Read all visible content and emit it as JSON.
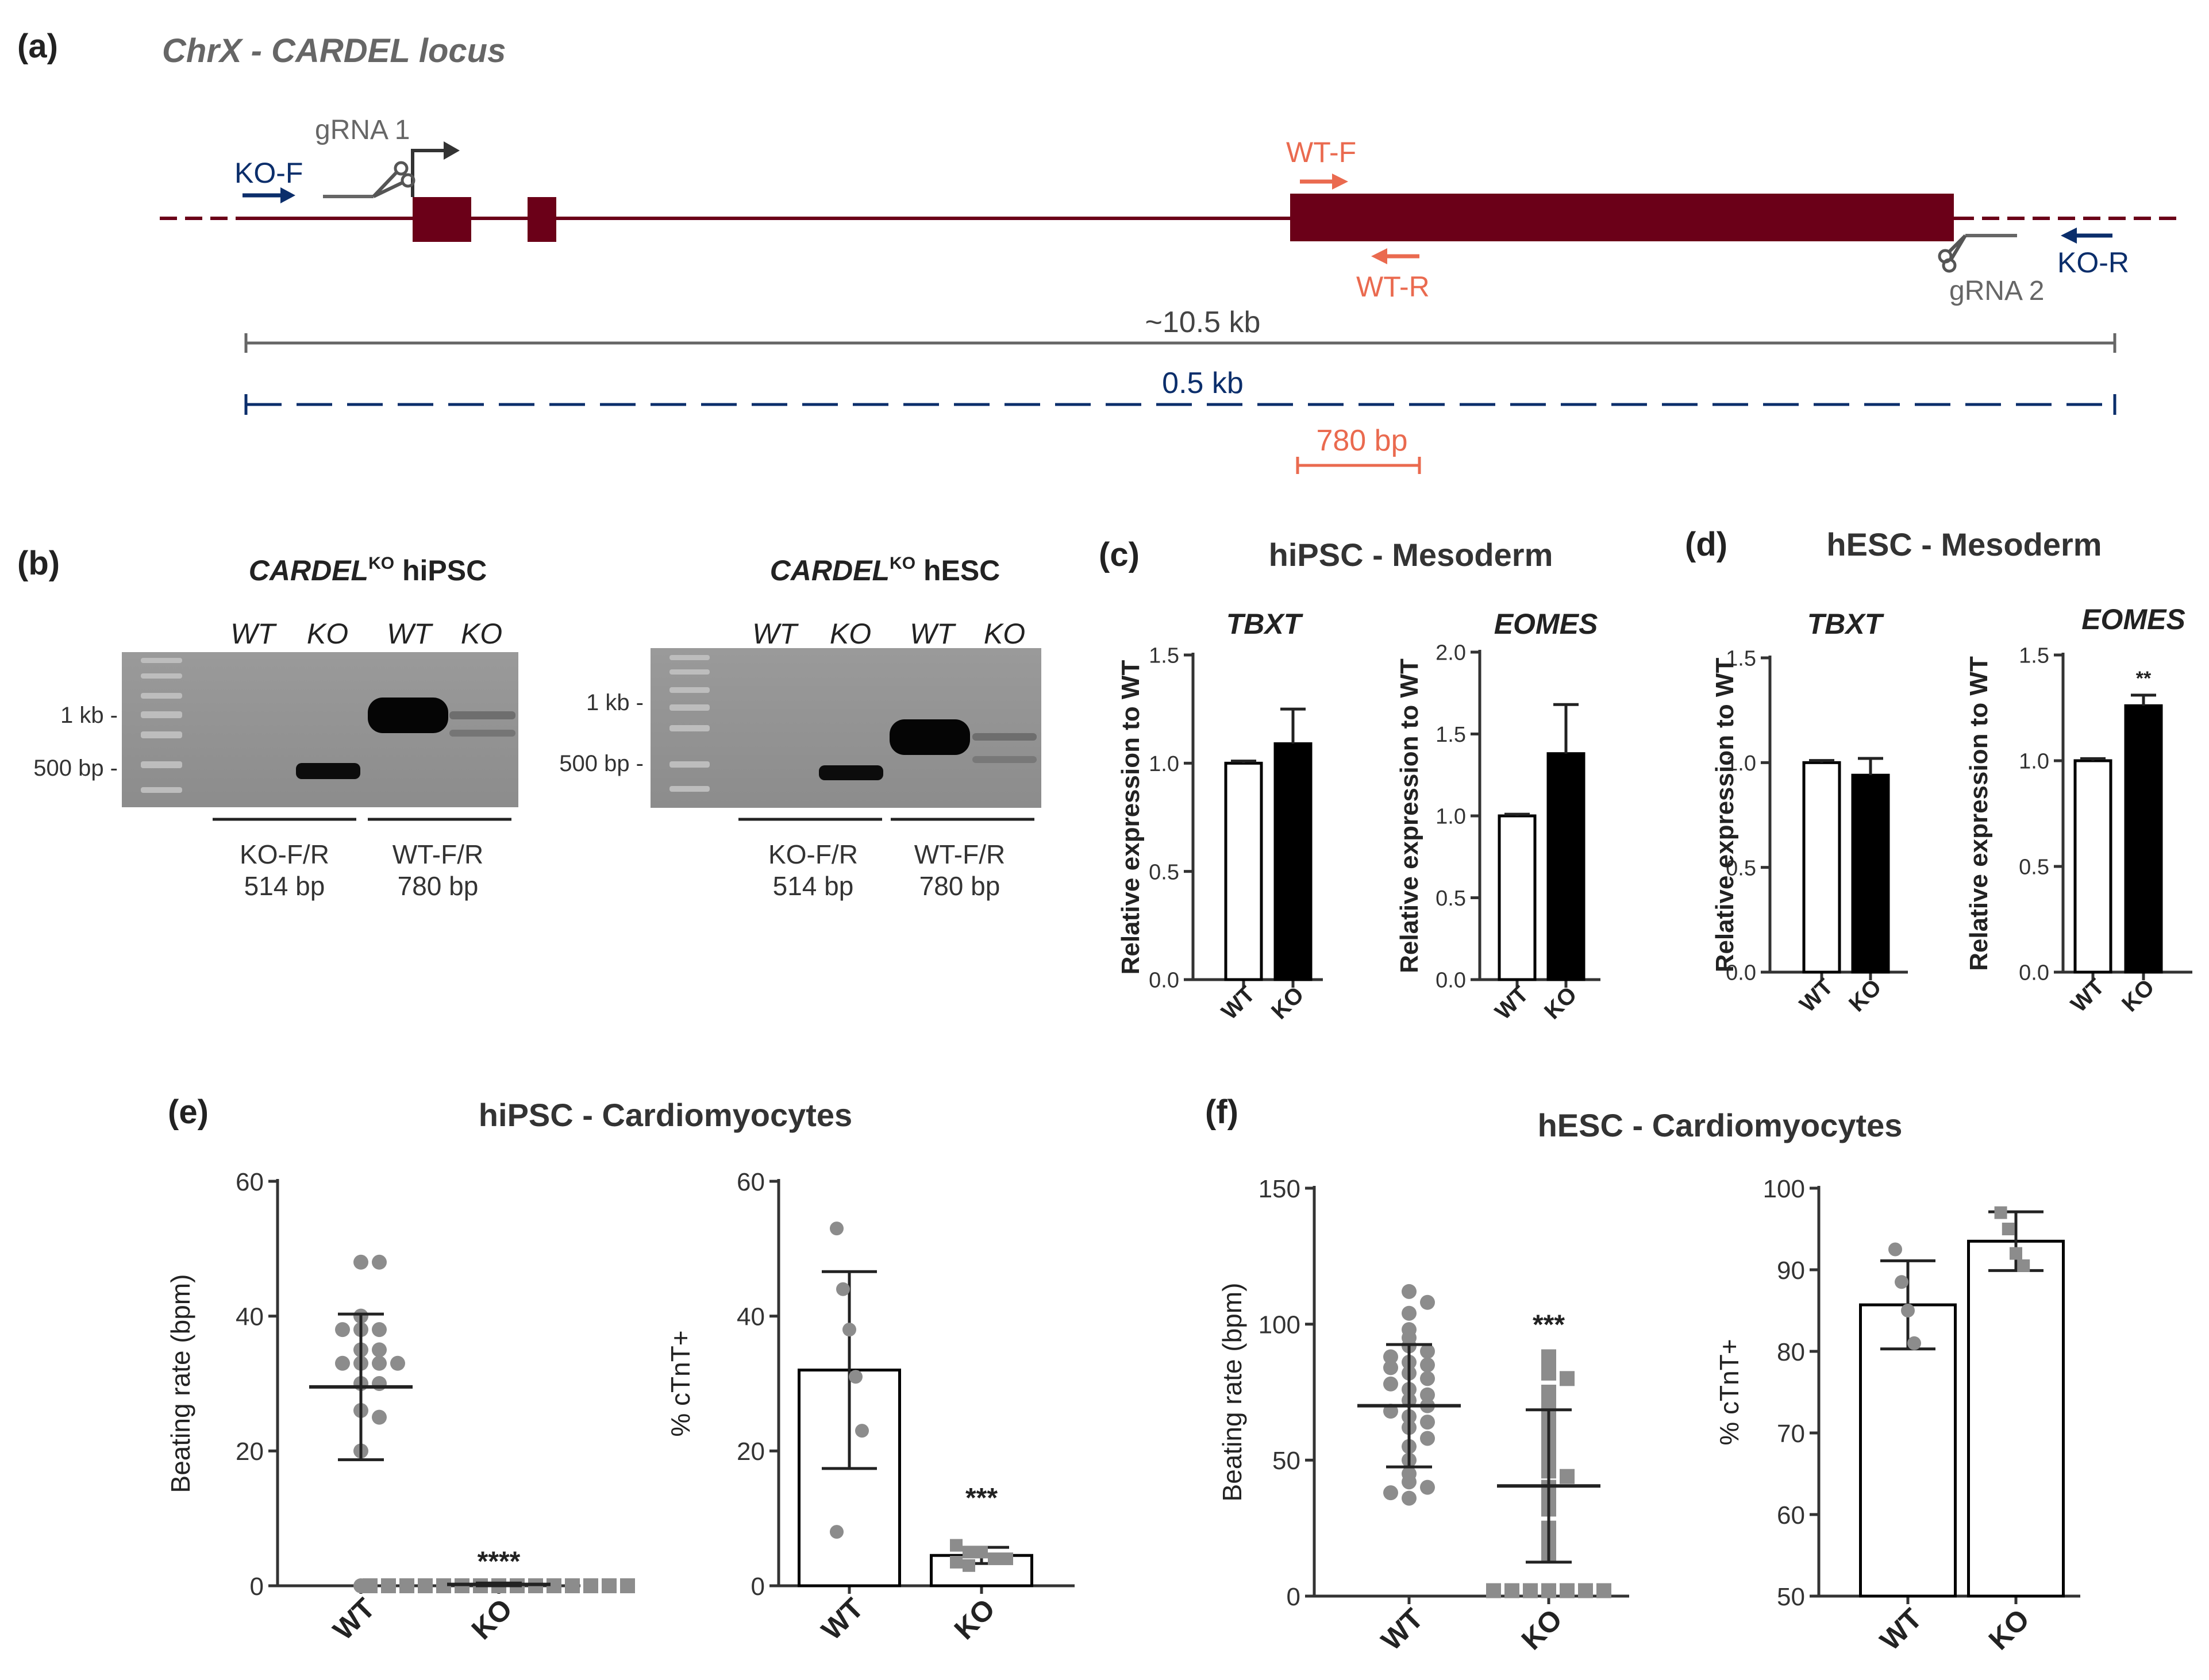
{
  "colors": {
    "exon": "#6b0018",
    "ko_primer": "#0b2e6b",
    "wt_primer": "#ea6a4f",
    "gray": "#6a6a6a",
    "point": "#8c8c8c",
    "bar_black": "#000000"
  },
  "panel_a": {
    "label": "(a)",
    "title": "ChrX - CARDEL locus",
    "ko_f": "KO-F",
    "ko_r": "KO-R",
    "wt_f": "WT-F",
    "wt_r": "WT-R",
    "grna1": "gRNA 1",
    "grna2": "gRNA 2",
    "span_wt": "~10.5 kb",
    "span_ko": "0.5 kb",
    "span_wtpcr": "780 bp"
  },
  "panel_b": {
    "label": "(b)",
    "left_title_gene": "CARDEL",
    "left_title_sup": "KO",
    "left_title_cell": "hiPSC",
    "right_title_gene": "CARDEL",
    "right_title_sup": "KO",
    "right_title_cell": "hESC",
    "lanes": [
      "WT",
      "KO",
      "WT",
      "KO"
    ],
    "marker_1kb": "1 kb -",
    "marker_500": "500 bp -",
    "group1_name": "KO-F/R",
    "group1_size": "514 bp",
    "group2_name": "WT-F/R",
    "group2_size": "780 bp"
  },
  "panel_c": {
    "label": "(c)",
    "title": "hiPSC - Mesoderm"
  },
  "panel_d": {
    "label": "(d)",
    "title": "hESC - Mesoderm"
  },
  "panel_e": {
    "label": "(e)",
    "title": "hiPSC - Cardiomyocytes"
  },
  "panel_f": {
    "label": "(f)",
    "title": "hESC - Cardiomyocytes"
  },
  "chart_data": [
    {
      "id": "c_tbxt",
      "panel": "(c)",
      "type": "bar",
      "title": "TBXT",
      "ylabel": "Relative expression to WT",
      "categories": [
        "WT",
        "KO"
      ],
      "values": [
        1.0,
        1.09
      ],
      "error": [
        0.01,
        0.16
      ],
      "fills": [
        "white",
        "black"
      ],
      "ylim": [
        0,
        1.5
      ],
      "yticks": [
        0.0,
        0.5,
        1.0,
        1.5
      ],
      "tick_labels": [
        "0.0",
        "0.5",
        "1.0",
        "1.5"
      ]
    },
    {
      "id": "c_eomes",
      "panel": "(c)",
      "type": "bar",
      "title": "EOMES",
      "ylabel": "Relative expression to WT",
      "categories": [
        "WT",
        "KO"
      ],
      "values": [
        1.0,
        1.38
      ],
      "error": [
        0.01,
        0.3
      ],
      "fills": [
        "white",
        "black"
      ],
      "ylim": [
        0,
        2.0
      ],
      "yticks": [
        0.0,
        0.5,
        1.0,
        1.5,
        2.0
      ],
      "tick_labels": [
        "0.0",
        "0.5",
        "1.0",
        "1.5",
        "2.0"
      ]
    },
    {
      "id": "d_tbxt",
      "panel": "(d)",
      "type": "bar",
      "title": "TBXT",
      "ylabel": "Relative expression to WT",
      "categories": [
        "WT",
        "KO"
      ],
      "values": [
        1.0,
        0.94
      ],
      "error": [
        0.01,
        0.08
      ],
      "fills": [
        "white",
        "black"
      ],
      "ylim": [
        0,
        1.5
      ],
      "yticks": [
        0.0,
        0.5,
        1.0,
        1.5
      ],
      "tick_labels": [
        "0.0",
        "0.5",
        "1.0",
        "1.5"
      ]
    },
    {
      "id": "d_eomes",
      "panel": "(d)",
      "type": "bar",
      "title": "EOMES",
      "ylabel": "Relative expression to WT",
      "categories": [
        "WT",
        "KO"
      ],
      "values": [
        1.0,
        1.26
      ],
      "error": [
        0.01,
        0.05
      ],
      "fills": [
        "white",
        "black"
      ],
      "ylim": [
        0,
        1.5
      ],
      "yticks": [
        0.0,
        0.5,
        1.0,
        1.5
      ],
      "tick_labels": [
        "0.0",
        "0.5",
        "1.0",
        "1.5"
      ],
      "annotations": [
        {
          "category": "KO",
          "text": "**"
        }
      ]
    },
    {
      "id": "e_beating",
      "panel": "(e)",
      "type": "scatter",
      "ylabel": "Beating rate (bpm)",
      "categories": [
        "WT",
        "KO"
      ],
      "ylim": [
        0,
        60
      ],
      "yticks": [
        0,
        20,
        40,
        60
      ],
      "tick_labels": [
        "0",
        "20",
        "40",
        "60"
      ],
      "series": [
        {
          "name": "WT",
          "mean": 29.5,
          "sd": 10.8,
          "points": [
            48,
            48,
            40,
            38,
            38,
            38,
            35,
            35,
            33,
            33,
            33,
            33,
            30,
            30,
            26,
            25,
            20,
            0
          ],
          "marker": "circle"
        },
        {
          "name": "KO",
          "mean": 0.2,
          "sd": 0.2,
          "points": [
            0,
            0,
            0,
            0,
            0,
            0,
            0,
            0,
            0,
            0,
            0,
            0,
            0,
            0,
            0
          ],
          "marker": "square"
        }
      ],
      "annotations": [
        {
          "category": "KO",
          "text": "****"
        }
      ]
    },
    {
      "id": "e_ctnt",
      "panel": "(e)",
      "type": "bar",
      "ylabel": "% cTnT+",
      "categories": [
        "WT",
        "KO"
      ],
      "values": [
        32,
        4.5
      ],
      "error": [
        14.6,
        1.2
      ],
      "ylim": [
        0,
        60
      ],
      "yticks": [
        0,
        20,
        40,
        60
      ],
      "tick_labels": [
        "0",
        "20",
        "40",
        "60"
      ],
      "points": [
        [
          53,
          44,
          38,
          31,
          23,
          8
        ],
        [
          6,
          5,
          5,
          4,
          4,
          3.5,
          3
        ]
      ],
      "annotations": [
        {
          "category": "KO",
          "text": "***"
        }
      ]
    },
    {
      "id": "f_beating",
      "panel": "(f)",
      "type": "scatter",
      "ylabel": "Beating rate (bpm)",
      "categories": [
        "WT",
        "KO"
      ],
      "ylim": [
        0,
        150
      ],
      "yticks": [
        0,
        50,
        100,
        150
      ],
      "tick_labels": [
        "0",
        "50",
        "100",
        "150"
      ],
      "series": [
        {
          "name": "WT",
          "mean": 70,
          "sd": 22.5,
          "points": [
            112,
            108,
            104,
            98,
            95,
            92,
            90,
            88,
            86,
            85,
            84,
            82,
            80,
            78,
            76,
            74,
            72,
            70,
            68,
            66,
            64,
            62,
            58,
            55,
            50,
            45,
            42,
            40,
            38,
            36
          ],
          "marker": "circle"
        },
        {
          "name": "KO",
          "mean": 40.5,
          "sd": 28,
          "points": [
            88,
            85,
            82,
            80,
            75,
            70,
            65,
            60,
            55,
            50,
            46,
            44,
            40,
            36,
            32,
            25,
            20,
            15,
            2,
            2,
            2,
            2,
            2,
            2,
            2
          ],
          "marker": "square"
        }
      ],
      "annotations": [
        {
          "category": "KO",
          "text": "***"
        }
      ]
    },
    {
      "id": "f_ctnt",
      "panel": "(f)",
      "type": "bar",
      "ylabel": "% cTnT+",
      "categories": [
        "WT",
        "KO"
      ],
      "values": [
        85.7,
        93.5
      ],
      "error": [
        5.4,
        3.6
      ],
      "ylim": [
        50,
        100
      ],
      "yticks": [
        50,
        60,
        70,
        80,
        90,
        100
      ],
      "tick_labels": [
        "50",
        "60",
        "70",
        "80",
        "90",
        "100"
      ],
      "points": [
        [
          92.5,
          88.5,
          85,
          81
        ],
        [
          97,
          95,
          92,
          90.5
        ]
      ]
    }
  ]
}
